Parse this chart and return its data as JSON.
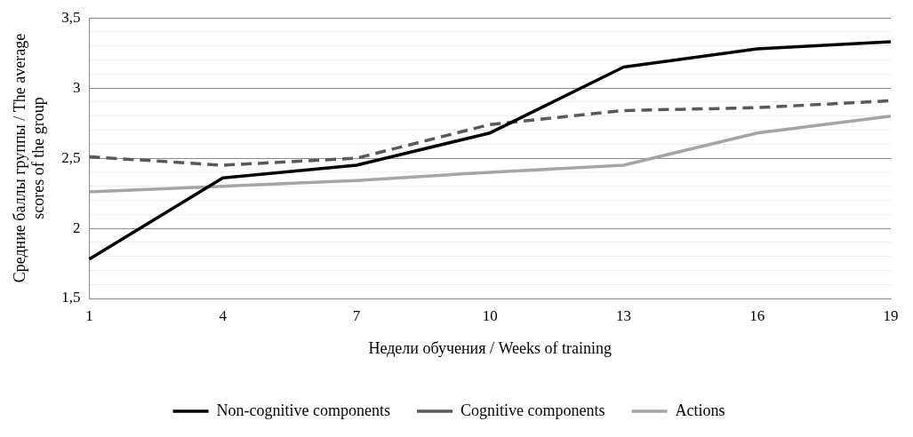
{
  "chart_data": {
    "type": "line",
    "xlabel": "Недели обучения / Weeks of training",
    "ylabel": "Средние баллы группы / The average scores of the group",
    "categories": [
      "1",
      "4",
      "7",
      "10",
      "13",
      "16",
      "19"
    ],
    "series": [
      {
        "name": "Non-cognitive components",
        "color": "#000000",
        "line_style": "solid",
        "values": [
          1.78,
          2.36,
          2.45,
          2.68,
          3.15,
          3.28,
          3.33
        ]
      },
      {
        "name": "Cognitive components",
        "color": "#595959",
        "line_style": "dashed",
        "values": [
          2.51,
          2.45,
          2.5,
          2.74,
          2.84,
          2.86,
          2.91
        ]
      },
      {
        "name": "Actions",
        "color": "#a5a5a5",
        "line_style": "solid",
        "values": [
          2.26,
          2.3,
          2.34,
          2.4,
          2.45,
          2.68,
          2.8
        ]
      }
    ],
    "ylim": [
      1.5,
      3.5
    ],
    "yticks": [
      {
        "value": 1.5,
        "label": "1,5"
      },
      {
        "value": 1.6,
        "label": null
      },
      {
        "value": 1.7,
        "label": null
      },
      {
        "value": 1.8,
        "label": null
      },
      {
        "value": 1.9,
        "label": null
      },
      2,
      {
        "value": 2.1,
        "label": null
      },
      {
        "value": 2.2,
        "label": null
      },
      {
        "value": 2.3,
        "label": null
      },
      {
        "value": 2.4,
        "label": null
      },
      {
        "value": 2.5,
        "label": "2,5"
      },
      {
        "value": 2.6,
        "label": null
      },
      {
        "value": 2.7,
        "label": null
      },
      {
        "value": 2.8,
        "label": null
      },
      {
        "value": 2.9,
        "label": null
      },
      3,
      {
        "value": 3.1,
        "label": null
      },
      {
        "value": 3.2,
        "label": null
      },
      {
        "value": 3.3,
        "label": null
      },
      {
        "value": 3.4,
        "label": null
      },
      {
        "value": 3.5,
        "label": "3,5"
      }
    ],
    "grid": "y",
    "legend": "bottom",
    "marker": "none"
  }
}
